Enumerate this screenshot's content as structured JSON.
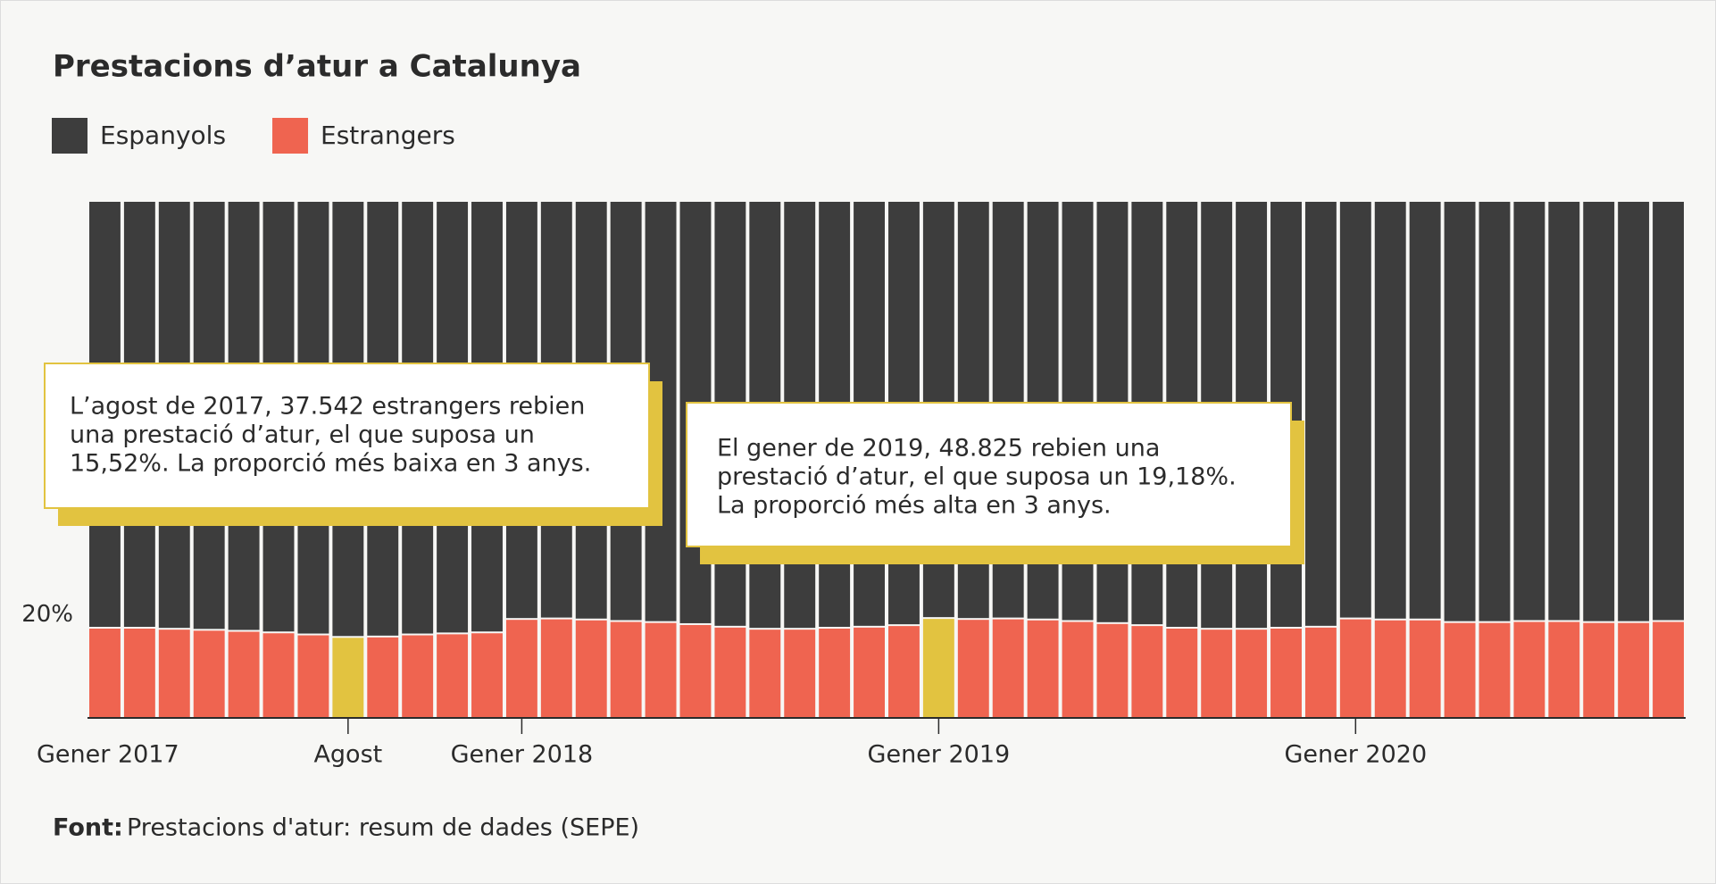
{
  "chart_data": {
    "type": "stacked_bar_100",
    "title": "Prestacions d’atur a Catalunya",
    "categories": [
      "Gener 2017",
      null,
      null,
      null,
      null,
      null,
      null,
      "Agost",
      null,
      null,
      null,
      null,
      "Gener 2018",
      null,
      null,
      null,
      null,
      null,
      null,
      null,
      null,
      null,
      null,
      null,
      "Gener 2019",
      null,
      null,
      null,
      null,
      null,
      null,
      null,
      null,
      null,
      null,
      null,
      "Gener 2020",
      null,
      null,
      null,
      null,
      null,
      null,
      null,
      null,
      null
    ],
    "series": [
      {
        "name": "Estrangers",
        "color": "#ef6450",
        "values": [
          17.3,
          17.3,
          17.1,
          16.9,
          16.7,
          16.4,
          16.0,
          15.52,
          15.6,
          16.0,
          16.2,
          16.4,
          19.0,
          19.1,
          18.9,
          18.6,
          18.4,
          18.0,
          17.5,
          17.1,
          17.1,
          17.3,
          17.5,
          17.8,
          19.18,
          19.0,
          19.1,
          18.9,
          18.6,
          18.2,
          17.8,
          17.3,
          17.1,
          17.1,
          17.3,
          17.5,
          19.1,
          18.9,
          18.9,
          18.4,
          18.4,
          18.6,
          18.6,
          18.4,
          18.4,
          18.6
        ]
      },
      {
        "name": "Espanyols",
        "color": "#3d3d3d",
        "values": [
          82.7,
          82.7,
          82.9,
          83.1,
          83.3,
          83.6,
          84.0,
          84.48,
          84.4,
          84.0,
          83.8,
          83.6,
          81.0,
          80.9,
          81.1,
          81.4,
          81.6,
          82.0,
          82.5,
          82.9,
          82.9,
          82.7,
          82.5,
          82.2,
          80.82,
          81.0,
          80.9,
          81.1,
          81.4,
          81.8,
          82.2,
          82.7,
          82.9,
          82.9,
          82.7,
          82.5,
          80.9,
          81.1,
          81.1,
          81.6,
          81.6,
          81.4,
          81.4,
          81.6,
          81.6,
          81.4
        ]
      }
    ],
    "highlight": [
      7,
      24
    ],
    "highlight_color": "#e2c340",
    "ylim": [
      0,
      100
    ],
    "yticks": [
      {
        "value": 20,
        "label": "20%"
      }
    ],
    "annotations": [
      {
        "lines": [
          "L’agost de 2017, 37.542 estrangers rebien",
          "una prestació d’atur, el que suposa un",
          "15,52%. La proporció més baixa en 3 anys."
        ]
      },
      {
        "lines": [
          "El gener de 2019, 48.825 rebien una",
          "prestació d’atur, el que suposa un 19,18%.",
          "La proporció més alta en 3 anys."
        ]
      }
    ],
    "source_label": "Font:",
    "source": "Prestacions d'atur: resum de dades (SEPE)"
  }
}
